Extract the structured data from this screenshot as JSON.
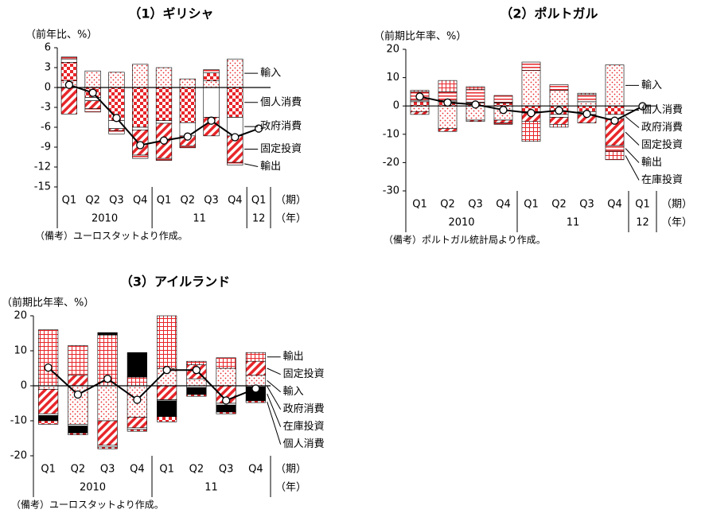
{
  "chart_data": [
    {
      "type": "bar",
      "title": "（1）ギリシャ",
      "y_label": "（前年比、%）",
      "x_label": "（期）",
      "year_label": "（年）",
      "source": "（備考）ユーロスタットより作成。",
      "categories": [
        "Q1",
        "Q2",
        "Q3",
        "Q4",
        "Q1",
        "Q2",
        "Q3",
        "Q4",
        "Q1"
      ],
      "years": [
        "2010",
        null,
        null,
        null,
        "11",
        null,
        null,
        null,
        "12"
      ],
      "ylim": [
        -15,
        6
      ],
      "yticks": [
        -15,
        -12,
        -9,
        -6,
        -3,
        0,
        3,
        6
      ],
      "series": [
        {
          "name": "輸入",
          "color": "#e8262a",
          "pattern": "dots",
          "values": [
            1.0,
            2.5,
            2.3,
            3.5,
            3.0,
            1.3,
            1.0,
            4.3,
            null
          ]
        },
        {
          "name": "個人消費",
          "color": "#e8262a",
          "pattern": "checker",
          "values": [
            2.8,
            -1.5,
            -5.0,
            -6.0,
            -5.0,
            -5.3,
            1.2,
            -4.5,
            null
          ]
        },
        {
          "name": "政府消費",
          "color": "#ffffff",
          "pattern": "white",
          "values": [
            0.5,
            -0.5,
            -1.2,
            -0.4,
            -0.4,
            -2.0,
            -4.5,
            -2.8,
            null
          ]
        },
        {
          "name": "固定投資",
          "color": "#e8262a",
          "pattern": "hatch",
          "values": [
            -4.0,
            -1.2,
            -0.3,
            -3.8,
            -5.3,
            -1.5,
            -2.8,
            -4.0,
            null
          ]
        },
        {
          "name": "輸出",
          "color": "#e8262a",
          "pattern": "hlines",
          "values": [
            0.3,
            -0.5,
            -0.5,
            -0.5,
            -0.3,
            -0.3,
            0.5,
            -0.4,
            null
          ]
        },
        {
          "type": "line",
          "color": "#000000",
          "values": [
            0.4,
            -0.8,
            -4.6,
            -8.7,
            -8.0,
            -7.4,
            -5.0,
            -7.5,
            -6.2
          ]
        }
      ]
    },
    {
      "type": "bar",
      "title": "（2）ポルトガル",
      "y_label": "（前期比年率、%）",
      "x_label": "（期）",
      "year_label": "（年）",
      "source": "（備考）ポルトガル統計局より作成。",
      "categories": [
        "Q1",
        "Q2",
        "Q3",
        "Q4",
        "Q1",
        "Q2",
        "Q3",
        "Q4",
        "Q1"
      ],
      "years": [
        "2010",
        null,
        null,
        null,
        "11",
        null,
        null,
        null,
        "12"
      ],
      "ylim": [
        -30,
        20
      ],
      "yticks": [
        -30,
        -20,
        -10,
        0,
        10,
        20
      ],
      "series": [
        {
          "name": "輸入",
          "color": "#e8262a",
          "pattern": "dots",
          "values": [
            -2.0,
            -8.0,
            -5.0,
            -5.0,
            12.5,
            5.5,
            1.5,
            14.5,
            null
          ]
        },
        {
          "name": "個人消費",
          "color": "#e8262a",
          "pattern": "checker",
          "values": [
            1.5,
            1.5,
            1.0,
            1.0,
            -2.0,
            -3.0,
            -2.0,
            -3.0,
            null
          ]
        },
        {
          "name": "政府消費",
          "color": "#ffffff",
          "pattern": "white",
          "values": [
            0.5,
            0.5,
            0.3,
            0.2,
            -0.5,
            -1.0,
            -1.0,
            -1.5,
            null
          ]
        },
        {
          "name": "固定投資",
          "color": "#e8262a",
          "pattern": "hatch",
          "values": [
            -1.0,
            -1.0,
            -0.5,
            -1.0,
            -3.0,
            -2.5,
            -3.0,
            -9.5,
            null
          ]
        },
        {
          "name": "輸出",
          "color": "#e8262a",
          "pattern": "hlines",
          "values": [
            3.0,
            3.0,
            4.5,
            2.5,
            3.0,
            2.0,
            2.5,
            -2.0,
            null
          ]
        },
        {
          "name": "在庫投資",
          "color": "#e8262a",
          "pattern": "grid",
          "values": [
            0.5,
            4.0,
            1.0,
            -0.5,
            -7.0,
            -1.0,
            0.5,
            -3.0,
            null
          ]
        },
        {
          "type": "line",
          "color": "#000000",
          "values": [
            3.3,
            1.2,
            0.5,
            -1.4,
            -2.5,
            -1.6,
            -2.8,
            -5.2,
            -0.1
          ]
        }
      ]
    },
    {
      "type": "bar",
      "title": "（3）アイルランド",
      "y_label": "（前期比年率、%）",
      "x_label": "（期）",
      "year_label": "（年）",
      "source": "（備考）ユーロスタットより作成。",
      "categories": [
        "Q1",
        "Q2",
        "Q3",
        "Q4",
        "Q1",
        "Q2",
        "Q3",
        "Q4"
      ],
      "years": [
        "2010",
        null,
        null,
        null,
        "11",
        null,
        null,
        null
      ],
      "ylim": [
        -20,
        20
      ],
      "yticks": [
        -20,
        -10,
        0,
        10,
        20
      ],
      "series": [
        {
          "name": "輸入",
          "color": "#e8262a",
          "pattern": "dots",
          "values": [
            -1.0,
            -11.0,
            -10.0,
            -9.0,
            5.0,
            2.0,
            5.0,
            3.0
          ]
        },
        {
          "name": "固定投資",
          "color": "#e8262a",
          "pattern": "hatch",
          "values": [
            -7.0,
            3.0,
            -7.0,
            -3.0,
            -4.0,
            4.0,
            -5.0,
            4.0
          ]
        },
        {
          "name": "政府消費",
          "color": "#ffffff",
          "pattern": "white",
          "values": [
            -0.5,
            -0.5,
            -0.5,
            -0.5,
            -0.3,
            -0.5,
            -0.5,
            -0.3
          ]
        },
        {
          "name": "輸出",
          "color": "#e8262a",
          "pattern": "grid",
          "values": [
            16.0,
            8.5,
            14.5,
            2.5,
            15.0,
            1.0,
            3.0,
            2.5
          ]
        },
        {
          "name": "在庫投資",
          "color": "#000000",
          "pattern": "solid",
          "values": [
            -1.5,
            -2.0,
            0.7,
            7.0,
            -4.5,
            -2.0,
            -2.0,
            -4.0
          ]
        },
        {
          "name": "個人消費",
          "color": "#e8262a",
          "pattern": "checker",
          "values": [
            -1.0,
            -0.5,
            -0.5,
            -0.5,
            -1.5,
            -0.5,
            -0.5,
            -0.5
          ]
        },
        {
          "type": "line",
          "color": "#000000",
          "values": [
            5.2,
            -2.5,
            2.0,
            -4.0,
            4.5,
            4.5,
            -4.2,
            -0.8
          ]
        }
      ]
    }
  ]
}
